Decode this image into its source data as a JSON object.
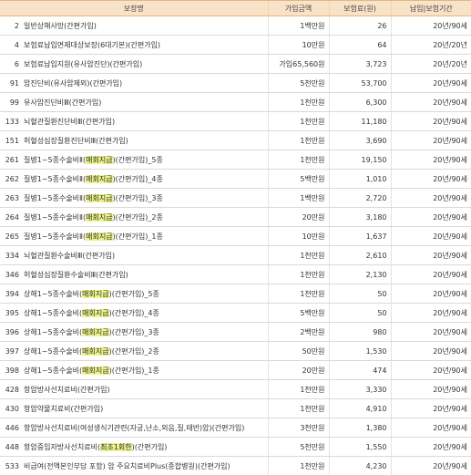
{
  "header": {
    "name": "보장명",
    "amount": "가입금액",
    "premium": "보험료(원)",
    "term": "납입|보험기간"
  },
  "rows": [
    {
      "no": "2",
      "name": "일반상해사망(간편가입)",
      "amount": "1백만원",
      "premium": "26",
      "term": "20년/90세"
    },
    {
      "no": "4",
      "name": "보험료납입면제대상보장(6대기본)(간편가입)",
      "amount": "10만원",
      "premium": "64",
      "term": "20년/20년"
    },
    {
      "no": "6",
      "name": "보험료납입지원(유사암진단)(간편가입)",
      "amount": "가입65,560원",
      "premium": "3,723",
      "term": "20년/20년"
    },
    {
      "no": "91",
      "name": "암진단비(유사암제외)(간편가입)",
      "amount": "5천만원",
      "premium": "53,700",
      "term": "20년/90세"
    },
    {
      "no": "99",
      "name": "유사암진단비Ⅲ(간편가입)",
      "amount": "1천만원",
      "premium": "6,300",
      "term": "20년/90세"
    },
    {
      "no": "133",
      "name": "뇌혈관질환진단비Ⅲ(간편가입)",
      "amount": "1천만원",
      "premium": "11,180",
      "term": "20년/90세"
    },
    {
      "no": "151",
      "name": "허혈성심장질환진단비Ⅲ(간편가입)",
      "amount": "1천만원",
      "premium": "3,690",
      "term": "20년/90세"
    },
    {
      "no": "261",
      "name_pre": "질병1~5종수술비Ⅱ(",
      "name_hl": "매회지급",
      "name_post": ")(간편가입)_5종",
      "amount": "1천만원",
      "premium": "19,150",
      "term": "20년/90세"
    },
    {
      "no": "262",
      "name_pre": "질병1~5종수술비Ⅱ(",
      "name_hl": "매회지급",
      "name_post": ")(간편가입)_4종",
      "amount": "5백만원",
      "premium": "1,010",
      "term": "20년/90세"
    },
    {
      "no": "263",
      "name_pre": "질병1~5종수술비Ⅱ(",
      "name_hl": "매회지급",
      "name_post": ")(간편가입)_3종",
      "amount": "1백만원",
      "premium": "2,720",
      "term": "20년/90세"
    },
    {
      "no": "264",
      "name_pre": "질병1~5종수술비Ⅱ(",
      "name_hl": "매회지급",
      "name_post": ")(간편가입)_2종",
      "amount": "20만원",
      "premium": "3,180",
      "term": "20년/90세"
    },
    {
      "no": "265",
      "name_pre": "질병1~5종수술비Ⅱ(",
      "name_hl": "매회지급",
      "name_post": ")(간편가입)_1종",
      "amount": "10만원",
      "premium": "1,637",
      "term": "20년/90세"
    },
    {
      "no": "334",
      "name": "뇌혈관질환수술비Ⅲ(간편가입)",
      "amount": "1천만원",
      "premium": "2,610",
      "term": "20년/90세"
    },
    {
      "no": "346",
      "name": "허혈성심장질환수술비Ⅲ(간편가입)",
      "amount": "1천만원",
      "premium": "2,130",
      "term": "20년/90세"
    },
    {
      "no": "394",
      "name_pre": "상해1~5종수술비(",
      "name_hl": "매회지급",
      "name_post": ")(간편가입)_5종",
      "amount": "1천만원",
      "premium": "50",
      "term": "20년/90세"
    },
    {
      "no": "395",
      "name_pre": "상해1~5종수술비(",
      "name_hl": "매회지급",
      "name_post": ")(간편가입)_4종",
      "amount": "5백만원",
      "premium": "50",
      "term": "20년/90세"
    },
    {
      "no": "396",
      "name_pre": "상해1~5종수술비(",
      "name_hl": "매회지급",
      "name_post": ")(간편가입)_3종",
      "amount": "2백만원",
      "premium": "980",
      "term": "20년/90세"
    },
    {
      "no": "397",
      "name_pre": "상해1~5종수술비(",
      "name_hl": "매회지급",
      "name_post": ")(간편가입)_2종",
      "amount": "50만원",
      "premium": "1,530",
      "term": "20년/90세"
    },
    {
      "no": "398",
      "name_pre": "상해1~5종수술비(",
      "name_hl": "매회지급",
      "name_post": ")(간편가입)_1종",
      "amount": "20만원",
      "premium": "474",
      "term": "20년/90세"
    },
    {
      "no": "428",
      "name": "항암방사선치료비(간편가입)",
      "amount": "1천만원",
      "premium": "3,330",
      "term": "20년/90세"
    },
    {
      "no": "430",
      "name": "항암약물치료비(간편가입)",
      "amount": "1천만원",
      "premium": "4,910",
      "term": "20년/90세"
    },
    {
      "no": "446",
      "name": "항암방사선치료비(여성생식기관련(자궁,난소,외음,질,태반)암)(간편가입)",
      "amount": "3천만원",
      "premium": "1,380",
      "term": "20년/90세"
    },
    {
      "no": "448",
      "name_pre": "항암중입자방사선치료비(",
      "name_hl": "최초1회한",
      "name_post": ")(간편가입)",
      "amount": "5천만원",
      "premium": "1,550",
      "term": "20년/90세"
    },
    {
      "no": "533",
      "name": "비급여(전액본인부담 포함) 암 주요치료비Plus(종합병원)(간편가입)",
      "amount": "1천만원",
      "premium": "4,230",
      "term": "20년/90세"
    }
  ],
  "colors": {
    "header_bg": "#f8e3c8",
    "highlight": "#ecf48a"
  }
}
